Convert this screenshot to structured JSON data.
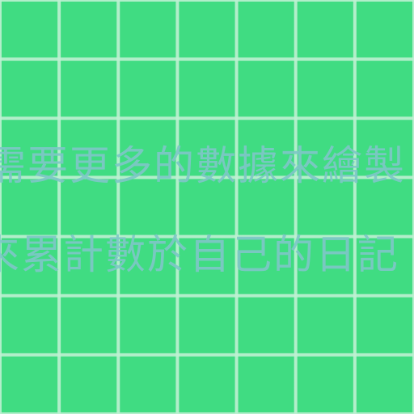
{
  "background": {
    "color": "#40dc82",
    "grid_line_color": "#bef0d2"
  },
  "text": {
    "color": "#7ec7c7",
    "lines": [
      "需要更多的數據來繪製",
      "來累計數於自己的日記"
    ]
  }
}
